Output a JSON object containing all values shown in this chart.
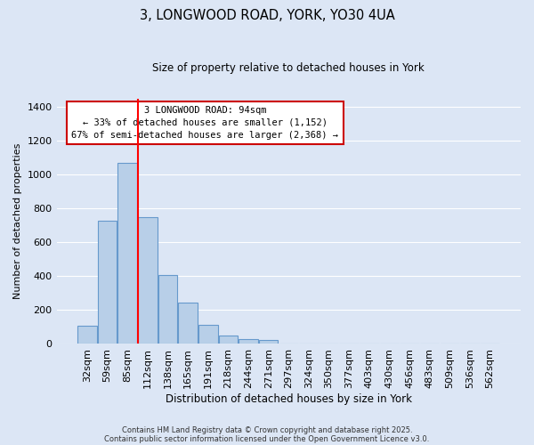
{
  "title": "3, LONGWOOD ROAD, YORK, YO30 4UA",
  "subtitle": "Size of property relative to detached houses in York",
  "xlabel": "Distribution of detached houses by size in York",
  "ylabel": "Number of detached properties",
  "bar_labels": [
    "32sqm",
    "59sqm",
    "85sqm",
    "112sqm",
    "138sqm",
    "165sqm",
    "191sqm",
    "218sqm",
    "244sqm",
    "271sqm",
    "297sqm",
    "324sqm",
    "350sqm",
    "377sqm",
    "403sqm",
    "430sqm",
    "456sqm",
    "483sqm",
    "509sqm",
    "536sqm",
    "562sqm"
  ],
  "bar_values": [
    110,
    730,
    1070,
    750,
    405,
    245,
    115,
    50,
    28,
    22,
    0,
    0,
    0,
    0,
    0,
    0,
    0,
    0,
    0,
    0,
    0
  ],
  "bar_color": "#b8cfe8",
  "bar_edge_color": "#6699cc",
  "background_color": "#dce6f5",
  "grid_color": "#ffffff",
  "ylim": [
    0,
    1450
  ],
  "yticks": [
    0,
    200,
    400,
    600,
    800,
    1000,
    1200,
    1400
  ],
  "red_line_x": 2.5,
  "annotation_title": "3 LONGWOOD ROAD: 94sqm",
  "annotation_line1": "← 33% of detached houses are smaller (1,152)",
  "annotation_line2": "67% of semi-detached houses are larger (2,368) →",
  "footer_line1": "Contains HM Land Registry data © Crown copyright and database right 2025.",
  "footer_line2": "Contains public sector information licensed under the Open Government Licence v3.0."
}
